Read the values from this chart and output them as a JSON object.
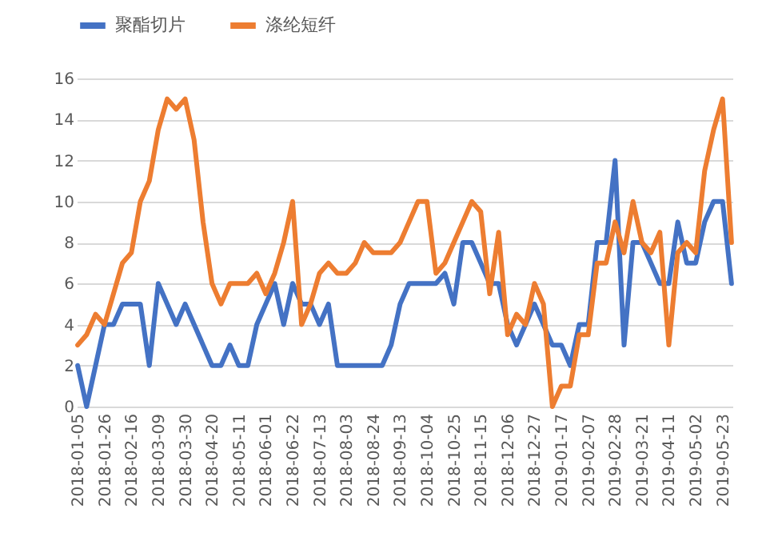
{
  "chart_data": {
    "type": "line",
    "categories": [
      "2018-01-05",
      null,
      null,
      "2018-01-26",
      null,
      null,
      "2018-02-16",
      null,
      null,
      "2018-03-09",
      null,
      null,
      "2018-03-30",
      null,
      null,
      "2018-04-20",
      null,
      null,
      "2018-05-11",
      null,
      null,
      "2018-06-01",
      null,
      null,
      "2018-06-22",
      null,
      null,
      "2018-07-13",
      null,
      null,
      "2018-08-03",
      null,
      null,
      "2018-08-24",
      null,
      null,
      "2018-09-13",
      null,
      null,
      "2018-10-04",
      null,
      null,
      "2018-10-25",
      null,
      null,
      "2018-11-15",
      null,
      null,
      "2018-12-06",
      null,
      null,
      "2018-12-27",
      null,
      null,
      "2019-01-17",
      null,
      null,
      "2019-02-07",
      null,
      null,
      "2019-02-28",
      null,
      null,
      "2019-03-21",
      null,
      null,
      "2019-04-11",
      null,
      null,
      "2019-05-02",
      null,
      null,
      "2019-05-23",
      null
    ],
    "series": [
      {
        "name": "聚酯切片",
        "color": "#4472c4",
        "values": [
          2,
          0,
          2,
          4,
          4,
          5,
          5,
          5,
          2,
          6,
          5,
          4,
          5,
          4,
          3,
          2,
          2,
          3,
          2,
          2,
          4,
          5,
          6,
          4,
          6,
          5,
          5,
          4,
          5,
          2,
          2,
          2,
          2,
          2,
          2,
          3,
          5,
          6,
          6,
          6,
          6,
          6.5,
          5,
          8,
          8,
          7,
          6,
          6,
          4,
          3,
          4,
          5,
          4,
          3,
          3,
          2,
          4,
          4,
          8,
          8,
          12,
          3,
          8,
          8,
          7,
          6,
          6,
          9,
          7,
          7,
          9,
          10,
          10,
          6
        ]
      },
      {
        "name": "涤纶短纤",
        "color": "#ed7d31",
        "values": [
          3,
          3.5,
          4.5,
          4,
          5.5,
          7,
          7.5,
          10,
          11,
          13.5,
          15,
          14.5,
          15,
          13,
          9,
          6,
          5,
          6,
          6,
          6,
          6.5,
          5.5,
          6.5,
          8,
          10,
          4,
          5,
          6.5,
          7,
          6.5,
          6.5,
          7,
          8,
          7.5,
          7.5,
          7.5,
          8,
          9,
          10,
          10,
          6.5,
          7,
          8,
          9,
          10,
          9.5,
          5.5,
          8.5,
          3.5,
          4.5,
          4,
          6,
          5,
          0,
          1,
          1,
          3.5,
          3.5,
          7,
          7,
          9,
          7.5,
          10,
          8,
          7.5,
          8.5,
          3,
          7.5,
          8,
          7.5,
          11.5,
          13.5,
          15,
          8
        ]
      }
    ],
    "ylim": [
      0,
      16
    ],
    "yticks": [
      0,
      2,
      4,
      6,
      8,
      10,
      12,
      14,
      16
    ],
    "grid": "y",
    "legend": "top",
    "line_style": "solid",
    "marker": "none"
  }
}
